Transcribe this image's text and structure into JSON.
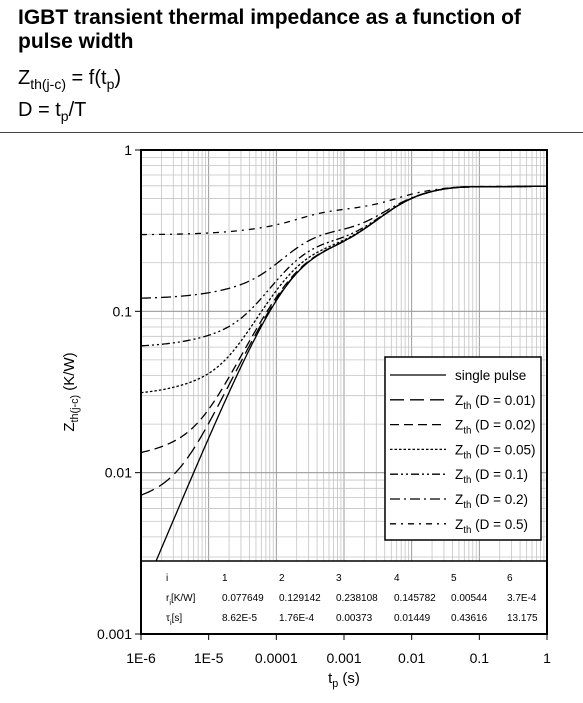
{
  "header": {
    "title": "IGBT transient thermal impedance as a function of pulse width",
    "formula_1": {
      "main": "Z",
      "sub": "th(j-c)",
      "mid": " = f(t",
      "sub2": "p",
      "end": ")"
    },
    "formula_2": {
      "main": "D = t",
      "sub": "p",
      "end": "/T"
    }
  },
  "chart_data": {
    "type": "line",
    "title": "",
    "xlabel": {
      "main": "t",
      "sub": "p",
      "unit": " (s)"
    },
    "ylabel": {
      "main": "Z",
      "sub": "th(j-c)",
      "unit": " (K/W)"
    },
    "xscale": "log",
    "yscale": "log",
    "xlim": [
      1e-06,
      1
    ],
    "ylim": [
      0.001,
      1
    ],
    "x_tick_labels": [
      "1E-6",
      "1E-5",
      "0.0001",
      "0.001",
      "0.01",
      "0.1",
      "1"
    ],
    "y_tick_labels": [
      "0.001",
      "0.01",
      "0.1",
      "1"
    ],
    "grid": true,
    "legend_position": "bottom-right",
    "series": [
      {
        "name": "single pulse",
        "style": "solid",
        "D": 0
      },
      {
        "name": "Zth (D = 0.01)",
        "label_main": "Z",
        "label_sub": "th",
        "label_rest": " (D = 0.01)",
        "style": "long-dash",
        "D": 0.01
      },
      {
        "name": "Zth (D = 0.02)",
        "label_main": "Z",
        "label_sub": "th",
        "label_rest": " (D = 0.02)",
        "style": "dash",
        "D": 0.02
      },
      {
        "name": "Zth (D = 0.05)",
        "label_main": "Z",
        "label_sub": "th",
        "label_rest": " (D = 0.05)",
        "style": "dot",
        "D": 0.05
      },
      {
        "name": "Zth (D = 0.1)",
        "label_main": "Z",
        "label_sub": "th",
        "label_rest": " (D = 0.1)",
        "style": "dash-dot-dot",
        "D": 0.1
      },
      {
        "name": "Zth (D = 0.2)",
        "label_main": "Z",
        "label_sub": "th",
        "label_rest": " (D = 0.2)",
        "style": "dash-dot",
        "D": 0.2
      },
      {
        "name": "Zth (D = 0.5)",
        "label_main": "Z",
        "label_sub": "th",
        "label_rest": " (D = 0.5)",
        "style": "dash-dot-sparse",
        "D": 0.5
      }
    ],
    "model_table": {
      "headers": [
        "i",
        "1",
        "2",
        "3",
        "4",
        "5",
        "6"
      ],
      "rows": [
        {
          "label_main": "r",
          "label_sub": "i",
          "label_rest": "[K/W]",
          "values": [
            "0.077649",
            "0.129142",
            "0.238108",
            "0.145782",
            "0.00544",
            "3.7E-4"
          ]
        },
        {
          "label_main": "τ",
          "label_sub": "i",
          "label_rest": "[s]",
          "values": [
            "8.62E-5",
            "1.76E-4",
            "0.00373",
            "0.01449",
            "0.43616",
            "13.175"
          ]
        }
      ]
    },
    "foster_r": [
      0.077649,
      0.129142,
      0.238108,
      0.145782,
      0.00544,
      0.00037
    ],
    "foster_tau": [
      8.62e-05,
      0.000176,
      0.00373,
      0.01449,
      0.43616,
      13.175
    ]
  }
}
